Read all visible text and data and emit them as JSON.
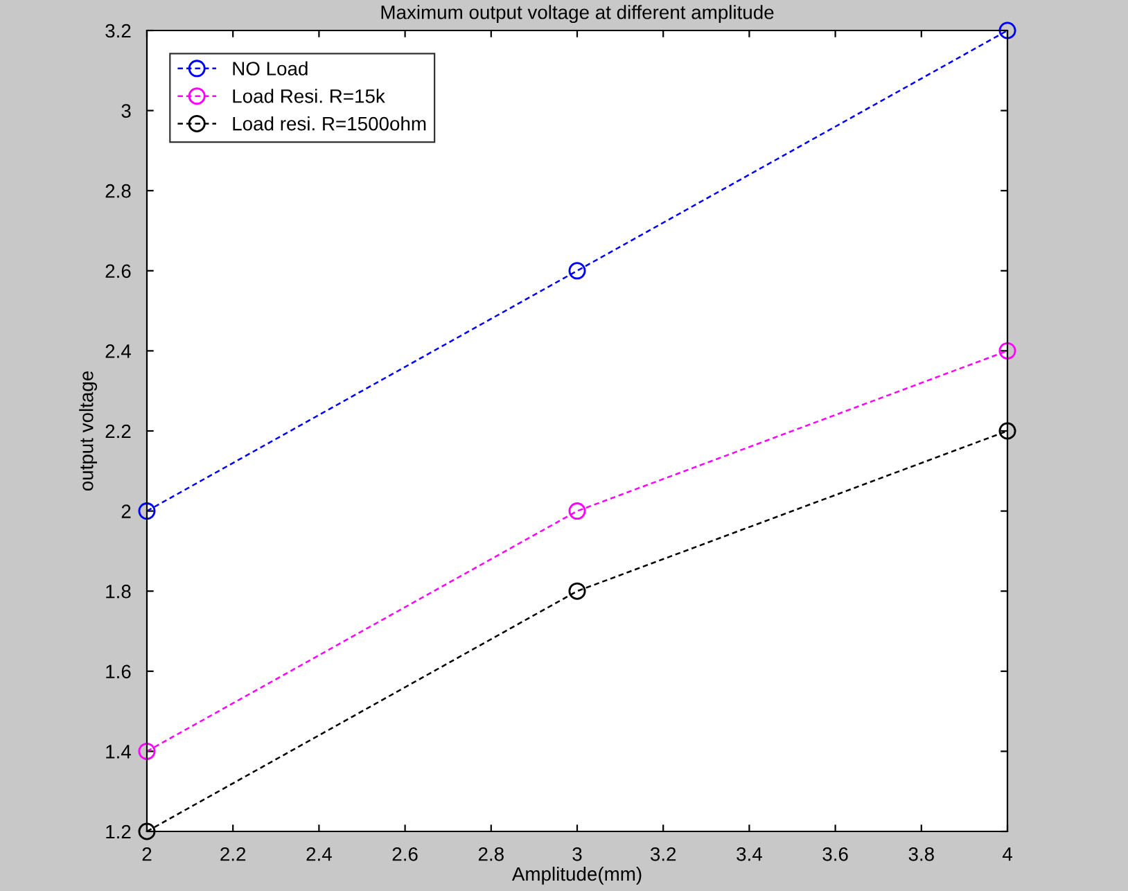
{
  "chart_data": {
    "type": "line",
    "title": "Maximum output voltage at different amplitude",
    "xlabel": "Amplitude(mm)",
    "ylabel": "output voltage",
    "x": [
      2,
      3,
      4
    ],
    "series": [
      {
        "name": "NO Load",
        "color": "#0000ff",
        "values": [
          2,
          2.6,
          3.2
        ]
      },
      {
        "name": "Load Resi. R=15k",
        "color": "#ff00ff",
        "values": [
          1.4,
          2,
          2.4
        ]
      },
      {
        "name": "Load resi. R=1500ohm",
        "color": "#000000",
        "values": [
          1.2,
          1.8,
          2.2
        ]
      }
    ],
    "xlim": [
      2,
      4
    ],
    "xticks": [
      2,
      2.2,
      2.4,
      2.6,
      2.8,
      3,
      3.2,
      3.4,
      3.6,
      3.8,
      4
    ],
    "ylim": [
      1.2,
      3.2
    ],
    "yticks": [
      1.2,
      1.4,
      1.6,
      1.8,
      2,
      2.2,
      2.4,
      2.6,
      2.8,
      3,
      3.2
    ],
    "grid": false,
    "legend": "top left",
    "marker": "circle",
    "line_style": "dashed"
  }
}
